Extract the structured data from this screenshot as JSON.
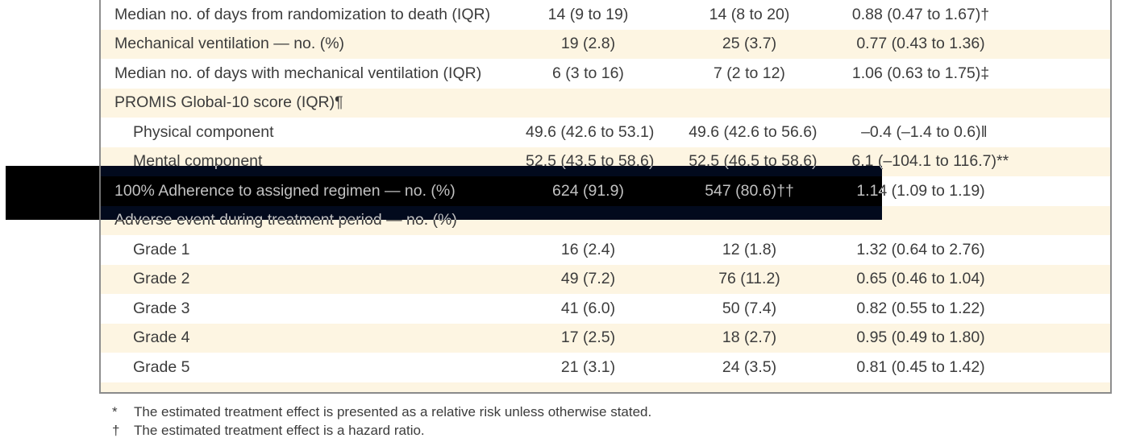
{
  "colors": {
    "stripe": "#fdf5e2",
    "text": "#3c3c3c",
    "table_border": "#8e8e8e",
    "highlight_band": "#000000"
  },
  "table": {
    "rows": [
      {
        "label": "Median no. of days from randomization to death (IQR)",
        "indent": 0,
        "stripe": false,
        "highlighted": false,
        "values": [
          "14 (9 to 19)",
          "14 (8 to 20)",
          "0.88 (0.47 to 1.67)†"
        ]
      },
      {
        "label": "Mechanical ventilation — no. (%)",
        "indent": 0,
        "stripe": true,
        "highlighted": false,
        "values": [
          "19 (2.8)",
          "25 (3.7)",
          "0.77 (0.43 to 1.36)"
        ]
      },
      {
        "label": "Median no. of days with mechanical ventilation (IQR)",
        "indent": 0,
        "stripe": false,
        "highlighted": false,
        "values": [
          "6 (3 to 16)",
          "7 (2 to 12)",
          "1.06 (0.63 to 1.75)‡"
        ]
      },
      {
        "label": "PROMIS Global-10 score (IQR)¶",
        "indent": 0,
        "stripe": true,
        "highlighted": false,
        "values": [
          "",
          "",
          ""
        ]
      },
      {
        "label": "Physical component",
        "indent": 1,
        "stripe": false,
        "highlighted": false,
        "values": [
          "49.6 (42.6 to 53.1)",
          "49.6 (42.6 to 56.6)",
          "–0.4 (–1.4 to 0.6)‖"
        ]
      },
      {
        "label": "Mental component",
        "indent": 1,
        "stripe": true,
        "highlighted": false,
        "values": [
          "52.5 (43.5 to 58.6)",
          "52.5 (46.5 to 58.6)",
          "6.1 (–104.1 to 116.7)**"
        ]
      },
      {
        "label": "100% Adherence to assigned regimen — no. (%)",
        "indent": 0,
        "stripe": false,
        "highlighted": true,
        "values": [
          "624 (91.9)",
          "547 (80.6)††",
          "1.14 (1.09 to 1.19)"
        ]
      },
      {
        "label": "Adverse event during treatment period — no. (%)",
        "indent": 0,
        "stripe": true,
        "highlighted": false,
        "values": [
          "",
          "",
          ""
        ]
      },
      {
        "label": "Grade 1",
        "indent": 1,
        "stripe": false,
        "highlighted": false,
        "values": [
          "16 (2.4)",
          "12 (1.8)",
          "1.32 (0.64 to 2.76)"
        ]
      },
      {
        "label": "Grade 2",
        "indent": 1,
        "stripe": true,
        "highlighted": false,
        "values": [
          "49 (7.2)",
          "76 (11.2)",
          "0.65 (0.46 to 1.04)"
        ]
      },
      {
        "label": "Grade 3",
        "indent": 1,
        "stripe": false,
        "highlighted": false,
        "values": [
          "41 (6.0)",
          "50 (7.4)",
          "0.82 (0.55 to 1.22)"
        ]
      },
      {
        "label": "Grade 4",
        "indent": 1,
        "stripe": true,
        "highlighted": false,
        "values": [
          "17 (2.5)",
          "18 (2.7)",
          "0.95 (0.49 to 1.80)"
        ]
      },
      {
        "label": "Grade 5",
        "indent": 1,
        "stripe": false,
        "highlighted": false,
        "values": [
          "21 (3.1)",
          "24 (3.5)",
          "0.81 (0.45 to 1.42)"
        ]
      }
    ]
  },
  "footnotes": [
    {
      "symbol": "*",
      "text": "The estimated treatment effect is presented as a relative risk unless otherwise stated."
    },
    {
      "symbol": "†",
      "text": "The estimated treatment effect is a hazard ratio."
    }
  ]
}
